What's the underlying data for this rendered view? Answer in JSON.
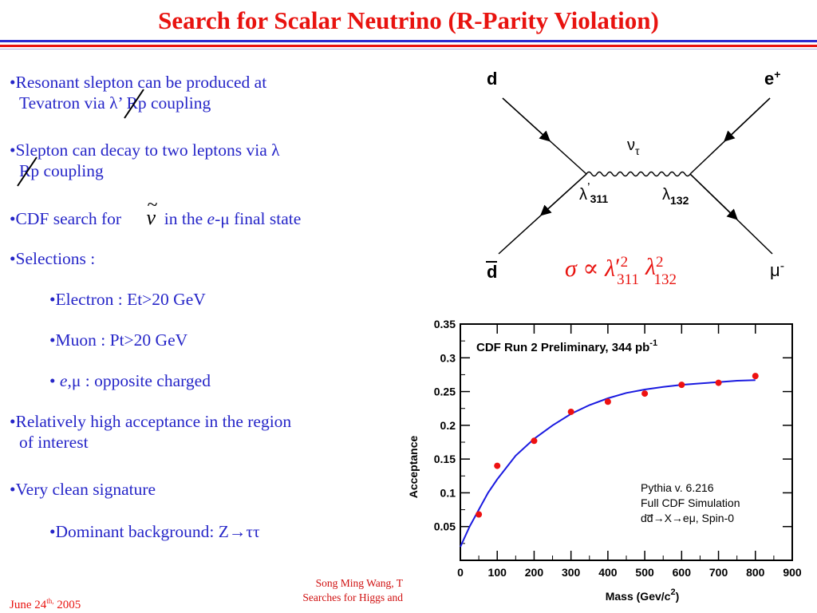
{
  "title": "Search for Scalar Neutrino (R-Parity Violation)",
  "bullets": {
    "b1": {
      "bullet": "•",
      "line1": "Resonant slepton can be produced at",
      "line2a": "Tevatron via λ’ ",
      "rp": "Rp",
      "line2b": " coupling"
    },
    "b2": {
      "bullet": "•",
      "line1": "Slepton can decay to two leptons via λ",
      "rp": "Rp",
      "line2b": " coupling"
    },
    "b3": {
      "bullet": "•",
      "pre": "CDF search for ",
      "nu": "ν",
      "tilde": "~",
      "post1": "  in the ",
      "e": "e",
      "post2": "-μ final state"
    },
    "b4": {
      "bullet": "•",
      "text": "Selections :"
    },
    "s1": {
      "bullet": "•",
      "text": "Electron : Et>20 GeV"
    },
    "s2": {
      "bullet": "•",
      "text": "Muon : Pt>20 GeV"
    },
    "s3": {
      "bullet": "• ",
      "e": "e",
      "text": ",μ : opposite charged"
    },
    "b5": {
      "bullet": "•",
      "line1": "Relatively high acceptance in the region",
      "line2": "of interest"
    },
    "b6": {
      "bullet": "•",
      "text": "Very clean signature"
    },
    "s4": {
      "bullet": "•",
      "text": "Dominant background: Z→ττ"
    }
  },
  "feynman": {
    "d_in": "d",
    "e_plus": "e",
    "e_plus_sup": "+",
    "dbar": "d",
    "mu": "μ",
    "mu_sup": "-",
    "nu": "ν",
    "nu_sub": "τ",
    "lambda311": "λ",
    "lambda311_prime": "’",
    "lambda311_sub": "311",
    "lambda132": "λ",
    "lambda132_sub": "132",
    "formula": {
      "sigma": "σ ∝ λ",
      "prime": "′",
      "sup1": "2",
      "sub1": "311",
      "lambda2": "λ",
      "sup2": "2",
      "sub2": "132"
    }
  },
  "chart_data": {
    "type": "scatter",
    "title": "CDF Run 2 Preliminary, 344 pb",
    "title_sup": "-1",
    "xlabel": "Mass (Gev/c",
    "xlabel_sup": "2",
    "xlabel_end": ")",
    "ylabel": "Acceptance",
    "xlim": [
      0,
      900
    ],
    "ylim": [
      0.0,
      0.35
    ],
    "xticks": [
      "0",
      "100",
      "200",
      "300",
      "400",
      "500",
      "600",
      "700",
      "800",
      "900"
    ],
    "yticks": [
      "0.05",
      "0.1",
      "0.15",
      "0.2",
      "0.25",
      "0.3",
      "0.35"
    ],
    "points": {
      "x": [
        50,
        100,
        200,
        300,
        400,
        500,
        600,
        700,
        800
      ],
      "y": [
        0.068,
        0.14,
        0.177,
        0.22,
        0.235,
        0.247,
        0.26,
        0.263,
        0.273
      ]
    },
    "fit": {
      "x": [
        0,
        25,
        50,
        75,
        100,
        150,
        200,
        250,
        300,
        350,
        400,
        450,
        500,
        550,
        600,
        650,
        700,
        750,
        800
      ],
      "y": [
        0.02,
        0.05,
        0.075,
        0.1,
        0.12,
        0.155,
        0.18,
        0.2,
        0.217,
        0.23,
        0.24,
        0.248,
        0.253,
        0.257,
        0.26,
        0.262,
        0.264,
        0.266,
        0.267
      ]
    },
    "annotation": [
      "Pythia v. 6.216",
      "Full CDF Simulation",
      "dd̅→X→eμ, Spin-0"
    ],
    "colors": {
      "points": "#ee1111",
      "fit": "#1a1ae0"
    }
  },
  "footer": {
    "date_pre": "June 24",
    "date_sup": "th,",
    "date_post": " 2005",
    "author_line1": "Song Ming Wang, T",
    "author_line2": "Searches for Higgs and"
  }
}
